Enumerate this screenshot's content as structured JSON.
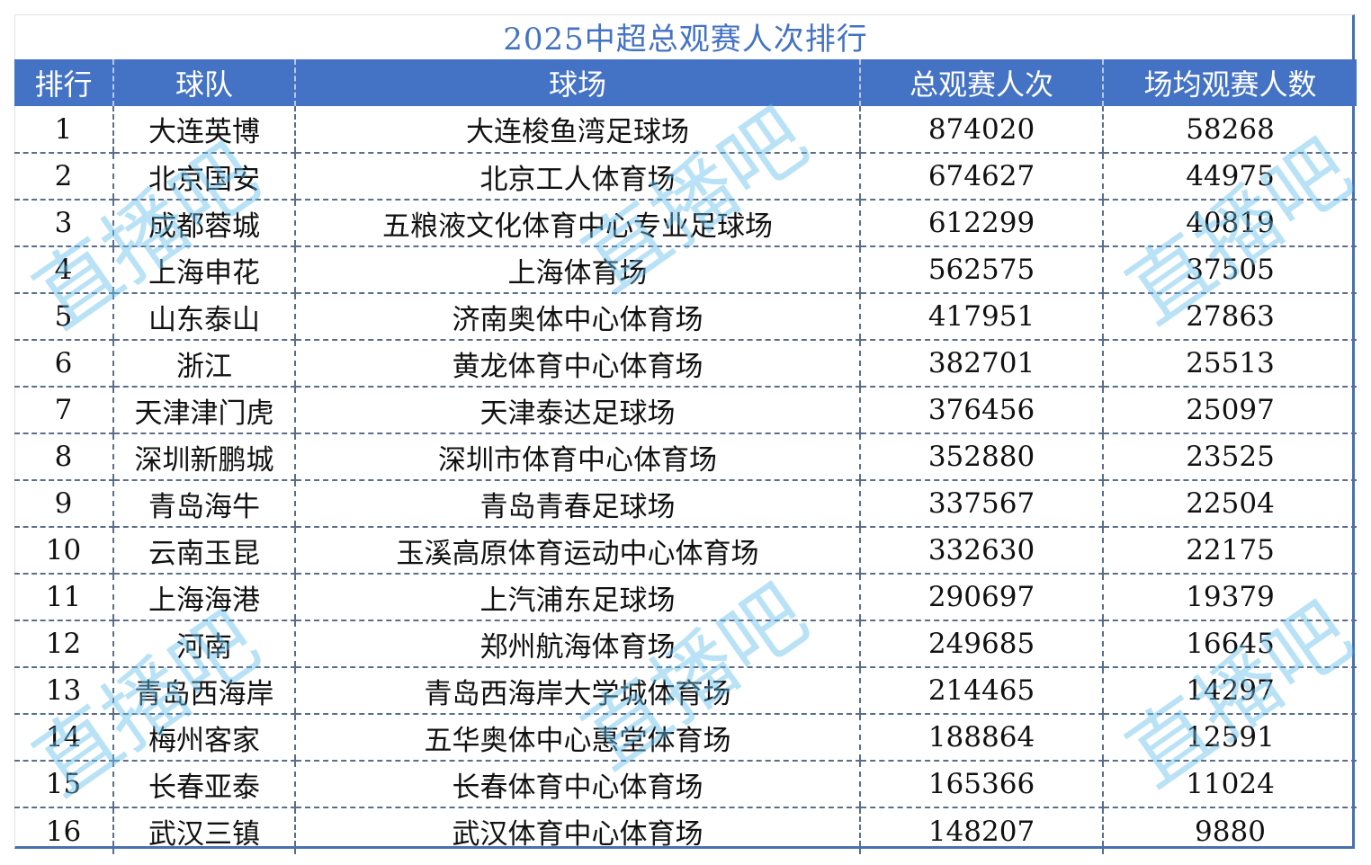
{
  "title": "2025中超总观赛人次排行",
  "headers": [
    "排行",
    "球队",
    "球场",
    "总观赛人次",
    "场均观赛人数"
  ],
  "rows": [
    [
      "1",
      "大连英博",
      "大连梭鱼湾足球场",
      "874020",
      "58268"
    ],
    [
      "2",
      "北京国安",
      "北京工人体育场",
      "674627",
      "44975"
    ],
    [
      "3",
      "成都蓉城",
      "五粮液文化体育中心专业足球场",
      "612299",
      "40819"
    ],
    [
      "4",
      "上海申花",
      "上海体育场",
      "562575",
      "37505"
    ],
    [
      "5",
      "山东泰山",
      "济南奥体中心体育场",
      "417951",
      "27863"
    ],
    [
      "6",
      "浙江",
      "黄龙体育中心体育场",
      "382701",
      "25513"
    ],
    [
      "7",
      "天津津门虎",
      "天津泰达足球场",
      "376456",
      "25097"
    ],
    [
      "8",
      "深圳新鹏城",
      "深圳市体育中心体育场",
      "352880",
      "23525"
    ],
    [
      "9",
      "青岛海牛",
      "青岛青春足球场",
      "337567",
      "22504"
    ],
    [
      "10",
      "云南玉昆",
      "玉溪高原体育运动中心体育场",
      "332630",
      "22175"
    ],
    [
      "11",
      "上海海港",
      "上汽浦东足球场",
      "290697",
      "19379"
    ],
    [
      "12",
      "河南",
      "郑州航海体育场",
      "249685",
      "16645"
    ],
    [
      "13",
      "青岛西海岸",
      "青岛西海岸大学城体育场",
      "214465",
      "14297"
    ],
    [
      "14",
      "梅州客家",
      "五华奥体中心惠堂体育场",
      "188864",
      "12591"
    ],
    [
      "15",
      "长春亚泰",
      "长春体育中心体育场",
      "165366",
      "11024"
    ],
    [
      "16",
      "武汉三镇",
      "武汉体育中心体育场",
      "148207",
      "9880"
    ]
  ],
  "watermark": "直播吧",
  "colors": {
    "header_bg": "#4472c4",
    "title": "#4472c4",
    "watermark": "#64bee b"
  }
}
